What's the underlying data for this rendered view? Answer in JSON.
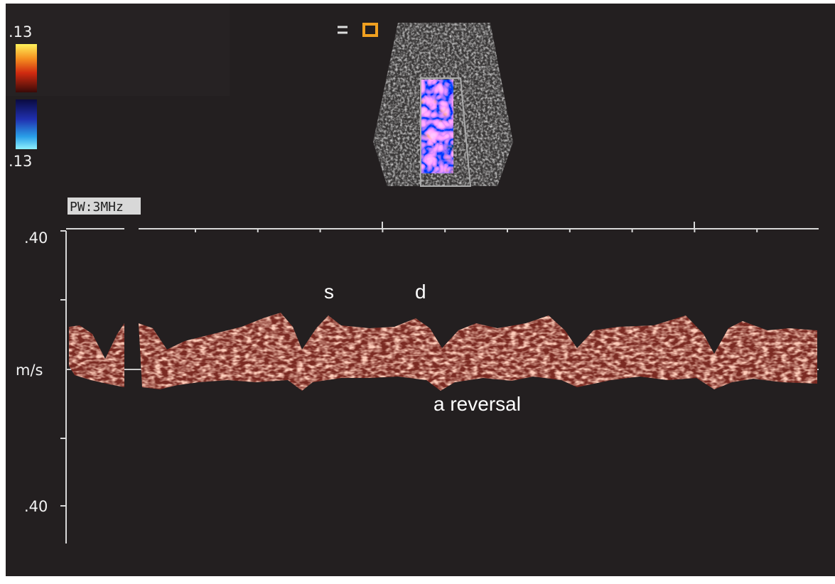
{
  "color_scale": {
    "top_label": ".13",
    "bottom_label": ".13"
  },
  "mode_label": "PW:3MHz",
  "axis": {
    "top_label": ".40",
    "unit_label": "m/s",
    "bottom_label": ".40"
  },
  "annotations": {
    "systolic": "s",
    "diastolic": "d",
    "reversal": "a reversal"
  }
}
